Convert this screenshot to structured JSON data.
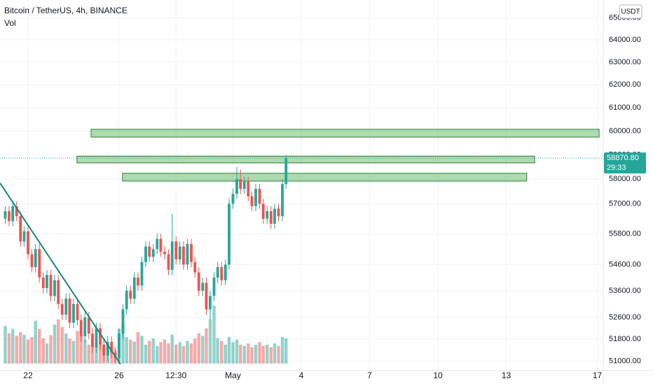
{
  "chart_data": {
    "type": "candlestick",
    "title": "Bitcoin / TetherUS, 4h, BINANCE",
    "volume_title": "Vol",
    "currency": "USDT",
    "log_scale": true,
    "grid": true,
    "up_color": "#26a69a",
    "down_color": "#ef5350",
    "xlim": [
      20.77,
      47.23
    ],
    "xticks": [
      22,
      26,
      {
        "value": 28.5,
        "label": "12:30"
      },
      {
        "value": 31,
        "label": "May"
      },
      {
        "value": 34,
        "label": "4"
      },
      {
        "value": 37,
        "label": "7"
      },
      {
        "value": 40,
        "label": "10"
      },
      {
        "value": 43,
        "label": "13"
      },
      {
        "value": 47,
        "label": "17"
      }
    ],
    "ylim": [
      50660,
      65830
    ],
    "yticks": [
      {
        "value": 65000,
        "label": "65000.00"
      },
      {
        "value": 64000,
        "label": "64000.00"
      },
      {
        "value": 63000,
        "label": "63000.00"
      },
      {
        "value": 62000,
        "label": "62000.00"
      },
      {
        "value": 61000,
        "label": "61000.00"
      },
      {
        "value": 60000,
        "label": "60000.00"
      },
      {
        "value": 59000,
        "label": "59000.00"
      },
      {
        "value": 58000,
        "label": "58000.00"
      },
      {
        "value": 57000,
        "label": "57000.00"
      },
      {
        "value": 55800,
        "label": "55800.00"
      },
      {
        "value": 54600,
        "label": "54600.00"
      },
      {
        "value": 53600,
        "label": "53600.00"
      },
      {
        "value": 52600,
        "label": "52600.00"
      },
      {
        "value": 51800,
        "label": "51800.00"
      },
      {
        "value": 51000,
        "label": "51000.00"
      }
    ],
    "x": [
      21,
      21.17,
      21.33,
      21.5,
      21.67,
      21.83,
      22,
      22.17,
      22.33,
      22.5,
      22.67,
      22.83,
      23,
      23.17,
      23.33,
      23.5,
      23.67,
      23.83,
      24,
      24.17,
      24.33,
      24.5,
      24.67,
      24.83,
      25,
      25.17,
      25.33,
      25.5,
      25.67,
      25.83,
      26,
      26.17,
      26.33,
      26.5,
      26.67,
      26.83,
      27,
      27.17,
      27.33,
      27.5,
      27.67,
      27.83,
      28,
      28.17,
      28.33,
      28.5,
      28.67,
      28.83,
      29,
      29.17,
      29.33,
      29.5,
      29.67,
      29.83,
      30,
      30.17,
      30.33,
      30.5,
      30.67,
      30.83,
      31,
      31.17,
      31.33,
      31.5,
      31.67,
      31.83,
      32,
      32.17,
      32.33,
      32.5,
      32.67,
      32.83,
      33,
      33.17,
      33.33
    ],
    "open": [
      56400,
      56700,
      56300,
      56900,
      56500,
      55500,
      55900,
      55000,
      54500,
      55200,
      54100,
      53700,
      54200,
      53400,
      54000,
      53100,
      52700,
      53300,
      52400,
      53100,
      52500,
      51900,
      52600,
      52000,
      51500,
      52200,
      51600,
      51200,
      51700,
      51300,
      51100,
      52000,
      52900,
      53600,
      53300,
      54100,
      53800,
      54700,
      55300,
      54900,
      55200,
      55600,
      55100,
      55000,
      54400,
      55500,
      54800,
      55300,
      54600,
      55400,
      54700,
      54300,
      53600,
      53900,
      52900,
      53400,
      54100,
      54500,
      54000,
      54600,
      57000,
      57400,
      58000,
      57600,
      57900,
      57300,
      56900,
      57600,
      57000,
      56400,
      56700,
      56200,
      56800,
      56500,
      57800
    ],
    "high": [
      56900,
      56900,
      57100,
      57100,
      56700,
      56100,
      56100,
      55200,
      55400,
      55400,
      54300,
      54400,
      54400,
      54200,
      54200,
      53300,
      53500,
      53500,
      53300,
      53300,
      52700,
      52800,
      52800,
      52200,
      52400,
      52400,
      51800,
      51900,
      51900,
      51500,
      52200,
      53100,
      53800,
      53800,
      54300,
      54300,
      54900,
      55500,
      55500,
      55400,
      55800,
      55800,
      55300,
      55200,
      56600,
      55700,
      55500,
      55500,
      55600,
      55600,
      54900,
      54500,
      54100,
      54100,
      53600,
      54300,
      54700,
      54700,
      54800,
      57200,
      57600,
      58500,
      58400,
      58100,
      58100,
      57500,
      57800,
      57800,
      57200,
      56900,
      56900,
      57000,
      57000,
      58000,
      59000
    ],
    "low": [
      56200,
      56100,
      56100,
      56300,
      55300,
      55300,
      54800,
      54300,
      54300,
      53900,
      53500,
      53500,
      53200,
      53200,
      52900,
      52500,
      52500,
      52200,
      52200,
      52300,
      51700,
      51700,
      51800,
      51300,
      51300,
      51400,
      51000,
      51000,
      51100,
      50900,
      50900,
      51800,
      52700,
      53100,
      53100,
      53600,
      53600,
      54500,
      54700,
      54700,
      55000,
      54900,
      54800,
      54200,
      54200,
      54600,
      54600,
      54400,
      54400,
      54500,
      54100,
      53400,
      53400,
      52700,
      52500,
      53200,
      53900,
      53800,
      53800,
      54400,
      56800,
      57200,
      57400,
      57400,
      57100,
      56700,
      56700,
      56800,
      56200,
      56200,
      56000,
      56000,
      56300,
      56300,
      57600
    ],
    "close": [
      56700,
      56300,
      56900,
      56500,
      55500,
      55900,
      55000,
      54500,
      55200,
      54100,
      53700,
      54200,
      53400,
      54000,
      53100,
      52700,
      53300,
      52400,
      53100,
      52500,
      51900,
      52600,
      52000,
      51500,
      52200,
      51600,
      51200,
      51700,
      51300,
      51100,
      52000,
      52900,
      53600,
      53300,
      54100,
      53800,
      54700,
      55300,
      54900,
      55200,
      55600,
      55100,
      55000,
      54400,
      55500,
      54800,
      55300,
      54600,
      55400,
      54700,
      54300,
      53600,
      53900,
      52900,
      53400,
      54100,
      54500,
      54000,
      54600,
      57000,
      57400,
      58000,
      57600,
      57900,
      57300,
      56900,
      57600,
      57000,
      56400,
      56700,
      56200,
      56800,
      56500,
      57800,
      58870.8
    ],
    "volume": {
      "ylim": [
        0,
        100
      ],
      "values": [
        60,
        48,
        55,
        44,
        50,
        46,
        38,
        42,
        68,
        55,
        40,
        32,
        45,
        62,
        70,
        58,
        48,
        40,
        36,
        52,
        44,
        38,
        30,
        42,
        28,
        34,
        26,
        30,
        24,
        22,
        55,
        64,
        42,
        38,
        35,
        50,
        44,
        30,
        36,
        40,
        28,
        34,
        38,
        32,
        46,
        30,
        34,
        28,
        36,
        32,
        40,
        48,
        44,
        56,
        70,
        92,
        40,
        36,
        30,
        42,
        34,
        38,
        30,
        28,
        32,
        26,
        30,
        34,
        28,
        30,
        26,
        32,
        28,
        42,
        40
      ]
    },
    "last_price": {
      "value": 58870.8,
      "label": "58870.80"
    },
    "countdown": "29:33",
    "zones": [
      {
        "x": [
          24.77,
          47.08
        ],
        "y": [
          59750,
          60080
        ]
      },
      {
        "x": [
          24.15,
          44.25
        ],
        "y": [
          58670,
          58950
        ]
      },
      {
        "x": [
          26.15,
          43.9
        ],
        "y": [
          57920,
          58240
        ]
      }
    ],
    "zone_color": "#4caf50",
    "trendline": {
      "x": [
        20.77,
        26.06
      ],
      "y": [
        57840,
        50890
      ],
      "color": "#138a7a"
    }
  }
}
